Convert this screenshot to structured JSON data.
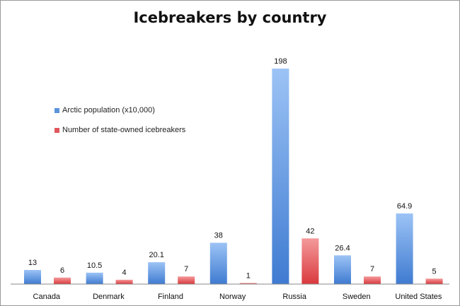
{
  "chart_data": {
    "type": "bar",
    "title": "Icebreakers by country",
    "categories": [
      "Canada",
      "Denmark",
      "Finland",
      "Norway",
      "Russia",
      "Sweden",
      "United States"
    ],
    "series": [
      {
        "name": "Arctic population (x10,000)",
        "values": [
          13,
          10.5,
          20.1,
          38,
          198,
          26.4,
          64.9
        ],
        "labels": [
          "13",
          "10.5",
          "20.1",
          "38",
          "198",
          "26.4",
          "64.9"
        ],
        "color": "#5b93dc"
      },
      {
        "name": "Number of state-owned icebreakers",
        "values": [
          6,
          4,
          7,
          1,
          42,
          7,
          5
        ],
        "labels": [
          "6",
          "4",
          "7",
          "1",
          "42",
          "7",
          "5"
        ],
        "color": "#e0575a"
      }
    ],
    "ylim": [
      0,
      200
    ],
    "grid": false,
    "legend_position": "left"
  }
}
